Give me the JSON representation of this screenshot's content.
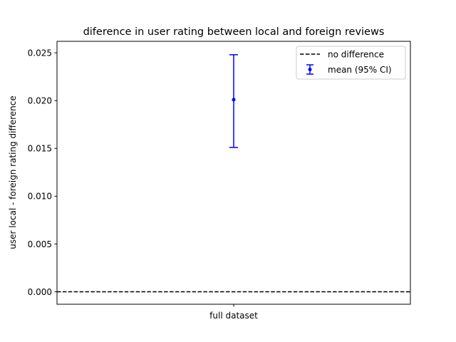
{
  "chart_data": {
    "type": "errorbar",
    "title": "diference in user rating between local and foreign reviews",
    "xlabel": "",
    "ylabel": "user local - foreign rating difference",
    "categories": [
      "full dataset"
    ],
    "series": [
      {
        "name": "mean (95% CI)",
        "values": [
          0.0201
        ],
        "ci_low": [
          0.0151
        ],
        "ci_high": [
          0.0248
        ],
        "color": "#0000ff"
      }
    ],
    "reference_line": {
      "name": "no difference",
      "y": 0.0,
      "style": "dashed",
      "color": "#000000"
    },
    "ylim": [
      -0.0013,
      0.0262
    ],
    "yticks": [
      "0.000",
      "0.005",
      "0.010",
      "0.015",
      "0.020",
      "0.025"
    ],
    "ytick_values": [
      0.0,
      0.005,
      0.01,
      0.015,
      0.02,
      0.025
    ],
    "grid": false,
    "legend_position": "top-right"
  }
}
